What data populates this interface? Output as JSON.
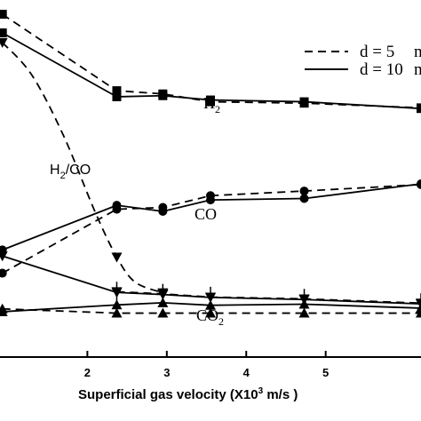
{
  "chart_data": {
    "type": "line",
    "xlabel": "Superficial gas velocity (X10",
    "xlabel_sup": "3",
    "xlabel_unit": " m/s )",
    "xlim": [
      0.9,
      6.2
    ],
    "ylim": [
      0,
      1
    ],
    "x_ticks": [
      2,
      3,
      4,
      5
    ],
    "legend": {
      "position": "top-right",
      "entries": [
        {
          "label": "d = 5",
          "suffix": "m",
          "style": "dashed"
        },
        {
          "label": "d = 10",
          "suffix": "m",
          "style": "solid"
        }
      ]
    },
    "annotations": {
      "h2": {
        "base": "H",
        "sub": "2"
      },
      "h2co": {
        "base": "H",
        "sub": "2",
        "rest": "/CO"
      },
      "co": {
        "base": "CO"
      },
      "co2": {
        "base": "CO",
        "sub": "2"
      }
    },
    "series": [
      {
        "group": "H2",
        "style": "dashed",
        "marker": "square",
        "x": [
          0.93,
          2.37,
          2.95,
          3.55,
          4.73,
          6.2
        ],
        "y": [
          0.96,
          0.746,
          0.737,
          0.715,
          0.711,
          0.698
        ]
      },
      {
        "group": "H2",
        "style": "solid",
        "marker": "square",
        "x": [
          0.93,
          2.37,
          2.95,
          3.55,
          4.73,
          6.2
        ],
        "y": [
          0.908,
          0.729,
          0.732,
          0.72,
          0.715,
          0.696
        ]
      },
      {
        "group": "H2/CO",
        "style": "dashed",
        "marker": "triangle-down",
        "x": [
          0.93,
          1.3,
          1.7,
          2.1,
          2.37,
          2.6,
          2.95
        ],
        "y": [
          0.881,
          0.79,
          0.62,
          0.405,
          0.28,
          0.21,
          0.18
        ]
      },
      {
        "group": "CO",
        "style": "dashed",
        "marker": "circle",
        "x": [
          0.93,
          2.37,
          2.95,
          3.55,
          4.73,
          6.2
        ],
        "y": [
          0.235,
          0.414,
          0.419,
          0.452,
          0.465,
          0.483
        ]
      },
      {
        "group": "CO",
        "style": "solid",
        "marker": "circle",
        "x": [
          0.93,
          2.37,
          2.95,
          3.55,
          4.73,
          6.2
        ],
        "y": [
          0.3,
          0.425,
          0.408,
          0.44,
          0.444,
          0.485
        ]
      },
      {
        "group": "CO2",
        "style": "solid",
        "marker": "triangle-down",
        "x": [
          0.93,
          2.37,
          2.95,
          3.55,
          4.73,
          6.2
        ],
        "y": [
          0.283,
          0.181,
          0.175,
          0.167,
          0.161,
          0.149
        ]
      },
      {
        "group": "CO2",
        "style": "dashed",
        "marker": "triangle-down",
        "x": [
          2.37,
          2.95,
          3.55,
          4.73,
          6.2
        ],
        "y": [
          0.183,
          0.177,
          0.168,
          0.163,
          0.151
        ]
      },
      {
        "group": "low",
        "style": "solid",
        "marker": "triangle-up",
        "x": [
          0.93,
          2.37,
          2.95,
          3.55,
          4.73,
          6.2
        ],
        "y": [
          0.127,
          0.146,
          0.152,
          0.145,
          0.148,
          0.137
        ]
      },
      {
        "group": "low",
        "style": "dashed",
        "marker": "triangle-up",
        "x": [
          0.93,
          2.37,
          2.95,
          3.55,
          4.73,
          6.2
        ],
        "y": [
          0.135,
          0.123,
          0.123,
          0.123,
          0.123,
          0.123
        ]
      }
    ]
  }
}
